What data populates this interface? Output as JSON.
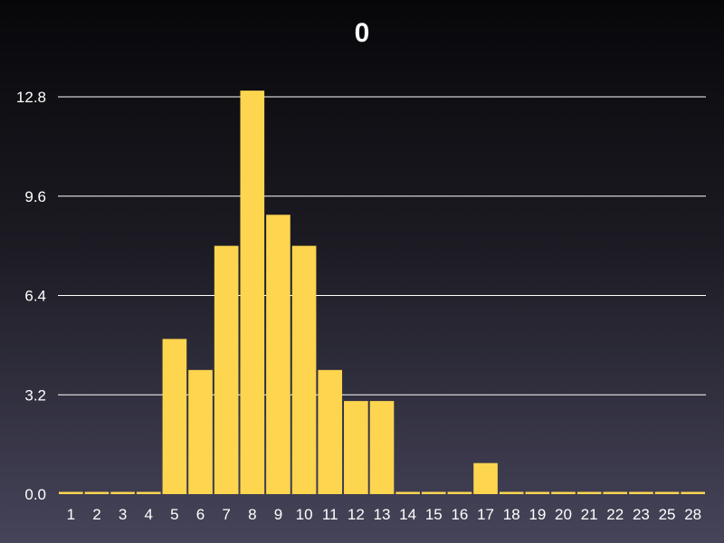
{
  "chart_data": {
    "type": "bar",
    "title": "0",
    "xlabel": "",
    "ylabel": "",
    "categories": [
      "1",
      "2",
      "3",
      "4",
      "5",
      "6",
      "7",
      "8",
      "9",
      "10",
      "11",
      "12",
      "13",
      "14",
      "15",
      "16",
      "17",
      "18",
      "19",
      "20",
      "21",
      "22",
      "23",
      "25",
      "28"
    ],
    "values": [
      0,
      0,
      0,
      0,
      5,
      4,
      8,
      13,
      9,
      8,
      4,
      3,
      3,
      0,
      0,
      0,
      1,
      0,
      0,
      0,
      0,
      0,
      0,
      0,
      0
    ],
    "ylim": [
      0,
      12.8
    ],
    "yticks": [
      "0.0",
      "3.2",
      "6.4",
      "9.6",
      "12.8"
    ],
    "grid": true,
    "bar_color": "#fdd54f",
    "grid_color": "#ffffff"
  }
}
